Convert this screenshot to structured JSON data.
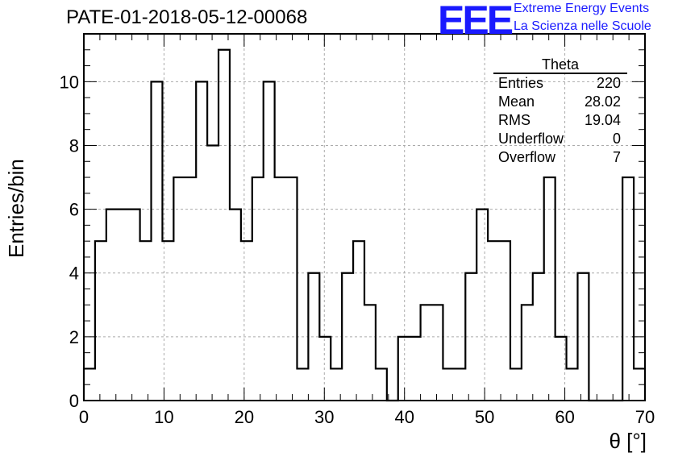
{
  "title": "PATE-01-2018-05-12-00068",
  "logo": {
    "mark": "EEE",
    "line1": "Extreme Energy Events",
    "line2": "La Scienza nelle Scuole",
    "color": "#1a1aff"
  },
  "stats": {
    "name": "Theta",
    "rows": [
      {
        "label": "Entries",
        "value": "220"
      },
      {
        "label": "Mean",
        "value": "28.02"
      },
      {
        "label": "RMS",
        "value": "19.04"
      },
      {
        "label": "Underflow",
        "value": "0"
      },
      {
        "label": "Overflow",
        "value": "7"
      }
    ]
  },
  "chart_data": {
    "type": "bar",
    "title": "PATE-01-2018-05-12-00068",
    "xlabel": "θ [°]",
    "ylabel": "Entries/bin",
    "xlim": [
      0,
      70
    ],
    "ylim": [
      0,
      11.5
    ],
    "bin_width": 1.4,
    "x_ticks": [
      0,
      10,
      20,
      30,
      40,
      50,
      60,
      70
    ],
    "y_ticks": [
      0,
      2,
      4,
      6,
      8,
      10
    ],
    "grid": true,
    "values": [
      1,
      5,
      6,
      6,
      6,
      5,
      10,
      5,
      7,
      7,
      10,
      8,
      11,
      6,
      5,
      7,
      10,
      7,
      7,
      1,
      4,
      2,
      1,
      4,
      5,
      3,
      1,
      0,
      2,
      2,
      3,
      3,
      1,
      1,
      4,
      6,
      5,
      5,
      1,
      3,
      4,
      7,
      2,
      1,
      4,
      0,
      0,
      0,
      7,
      1
    ]
  }
}
